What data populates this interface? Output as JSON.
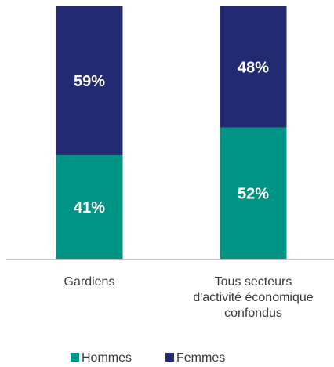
{
  "chart_data": {
    "type": "bar",
    "stacked": true,
    "percent": true,
    "categories": [
      [
        "Gardiens"
      ],
      [
        "Tous secteurs",
        "d'activité économique",
        "confondus"
      ]
    ],
    "series": [
      {
        "name": "Hommes",
        "values": [
          41,
          52
        ],
        "labels": [
          "41%",
          "52%"
        ],
        "color": "#009485"
      },
      {
        "name": "Femmes",
        "values": [
          59,
          48
        ],
        "labels": [
          "59%",
          "48%"
        ],
        "color": "#222a72"
      }
    ],
    "ylim": [
      0,
      100
    ],
    "grid": false,
    "legend": "bottom",
    "axis_color": "#bfbfbf"
  }
}
